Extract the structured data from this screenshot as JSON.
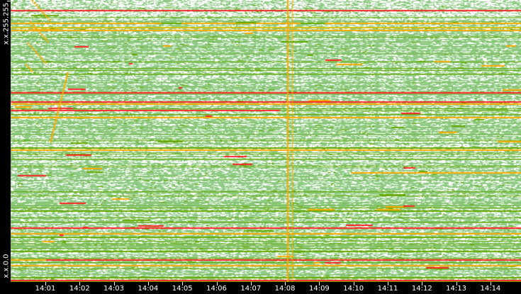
{
  "chart_data": {
    "type": "heatmap",
    "title": "",
    "xlabel": "",
    "ylabel": "",
    "x_tick_labels": [
      "14:01",
      "14:02",
      "14:03",
      "14:04",
      "14:05",
      "14:06",
      "14:07",
      "14:08",
      "14:09",
      "14:10",
      "14:11",
      "14:12",
      "14:13",
      "14:14"
    ],
    "y_tick_labels": [
      "x.x.255.255",
      "x.x.0.0"
    ],
    "colors": {
      "background": "#ffffff",
      "low": "#8fcb85",
      "medium": "#66aa00",
      "high": "#ffaa00",
      "max": "#ff2222",
      "axis": "#000000"
    },
    "grid": false,
    "legend": "none"
  }
}
